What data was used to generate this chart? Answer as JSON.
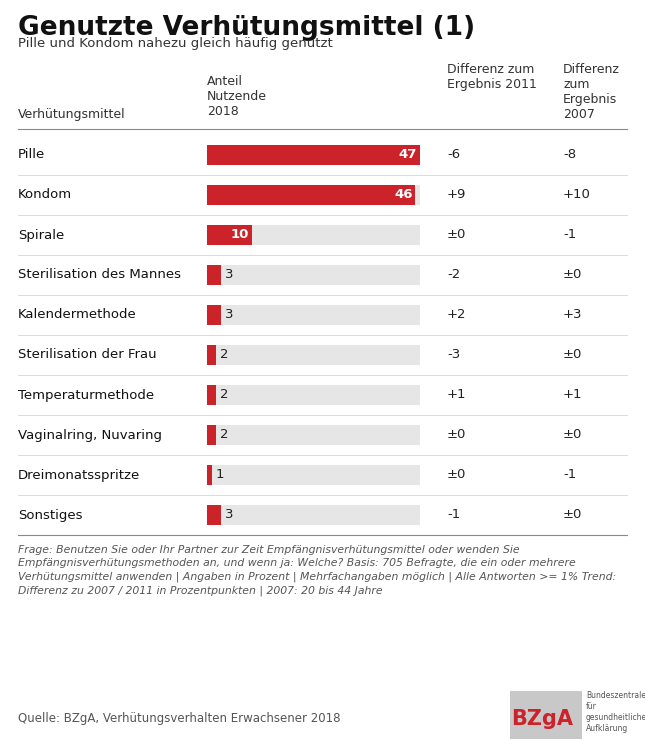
{
  "title": "Genutzte Verhütungsmittel (1)",
  "subtitle": "Pille und Kondom nahezu gleich häufig genutzt",
  "col_header_bar": "Anteil\nNutzende\n2018",
  "col_header_diff2011": "Differenz zum\nErgebnis 2011",
  "col_header_diff2007": "Differenz\nzum\nErgebnis\n2007",
  "col_header_label": "Verhütungsmittel",
  "categories": [
    "Pille",
    "Kondom",
    "Spirale",
    "Sterilisation des Mannes",
    "Kalendermethode",
    "Sterilisation der Frau",
    "Temperaturmethode",
    "Vaginalring, Nuvaring",
    "Dreimonatsspritze",
    "Sonstiges"
  ],
  "values": [
    47,
    46,
    10,
    3,
    3,
    2,
    2,
    2,
    1,
    3
  ],
  "diff2011": [
    "-6",
    "+9",
    "±0",
    "-2",
    "+2",
    "-3",
    "+1",
    "±0",
    "±0",
    "-1"
  ],
  "diff2007": [
    "-8",
    "+10",
    "-1",
    "±0",
    "+3",
    "±0",
    "+1",
    "±0",
    "-1",
    "±0"
  ],
  "bar_max": 47,
  "bar_color": "#cc2229",
  "bg_bar_color": "#e6e6e6",
  "text_color": "#1a1a1a",
  "footnote": "Frage: Benutzen Sie oder Ihr Partner zur Zeit Empfängnisverhütungsmittel oder wenden Sie\nEmpfängnisverhütungsmethoden an, und wenn ja: Welche? Basis: 705 Befragte, die ein oder mehrere\nVerhütungsmittel anwenden | Angaben in Prozent | Mehrfachangaben möglich | Alle Antworten >= 1% Trend:\nDifferenz zu 2007 / 2011 in Prozentpunkten | 2007: 20 bis 44 Jahre",
  "source": "Quelle: BZgA, Verhütungsverhalten Erwachsener 2018",
  "background_color": "#ffffff"
}
